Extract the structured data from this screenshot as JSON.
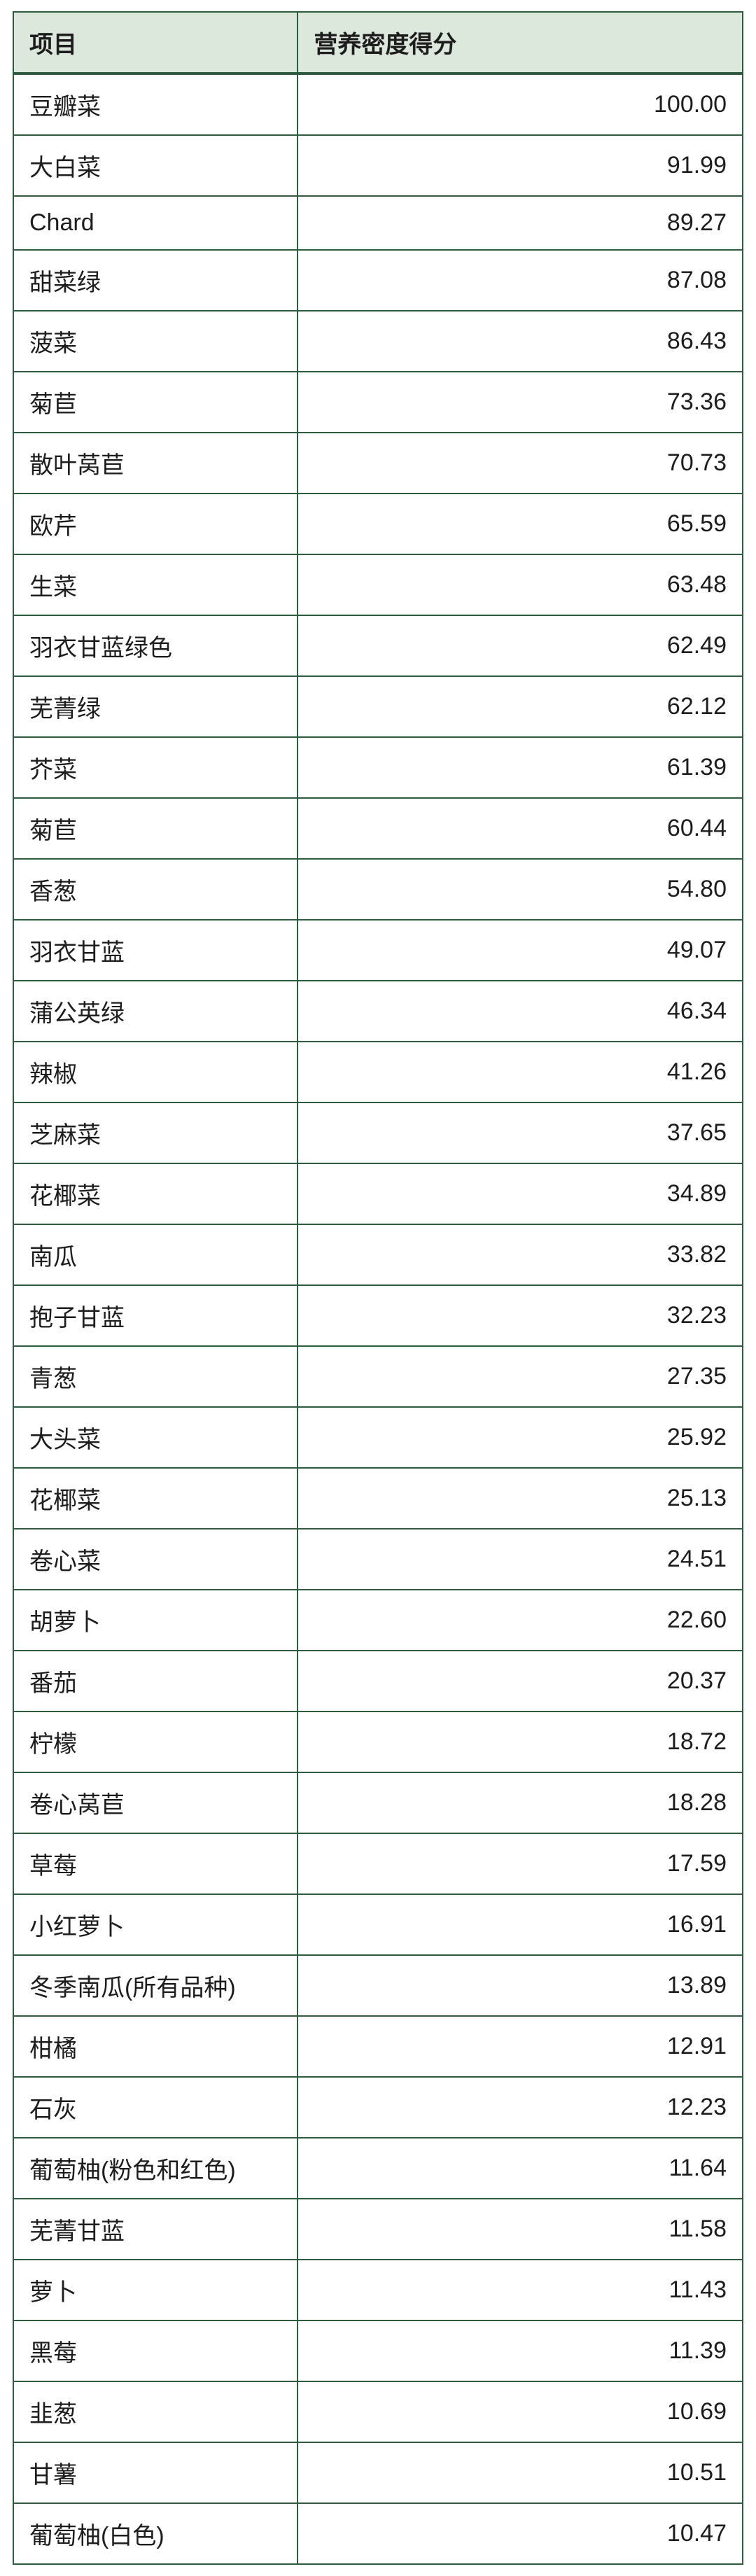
{
  "table": {
    "type": "table",
    "header_bg": "#dde8dd",
    "border_color": "#2d5b3e",
    "columns": [
      {
        "key": "item",
        "label": "项目",
        "align": "left"
      },
      {
        "key": "score",
        "label": "营养密度得分",
        "align": "right"
      }
    ],
    "rows": [
      {
        "item": "豆瓣菜",
        "score": "100.00"
      },
      {
        "item": "大白菜",
        "score": "91.99"
      },
      {
        "item": "Chard",
        "score": "89.27"
      },
      {
        "item": "甜菜绿",
        "score": "87.08"
      },
      {
        "item": "菠菜",
        "score": "86.43"
      },
      {
        "item": "菊苣",
        "score": "73.36"
      },
      {
        "item": "散叶莴苣",
        "score": "70.73"
      },
      {
        "item": "欧芹",
        "score": "65.59"
      },
      {
        "item": "生菜",
        "score": "63.48"
      },
      {
        "item": "羽衣甘蓝绿色",
        "score": "62.49"
      },
      {
        "item": "芜菁绿",
        "score": "62.12"
      },
      {
        "item": "芥菜",
        "score": "61.39"
      },
      {
        "item": "菊苣",
        "score": "60.44"
      },
      {
        "item": "香葱",
        "score": "54.80"
      },
      {
        "item": "羽衣甘蓝",
        "score": "49.07"
      },
      {
        "item": "蒲公英绿",
        "score": "46.34"
      },
      {
        "item": "辣椒",
        "score": "41.26"
      },
      {
        "item": "芝麻菜",
        "score": "37.65"
      },
      {
        "item": "花椰菜",
        "score": "34.89"
      },
      {
        "item": "南瓜",
        "score": "33.82"
      },
      {
        "item": "抱子甘蓝",
        "score": "32.23"
      },
      {
        "item": "青葱",
        "score": "27.35"
      },
      {
        "item": "大头菜",
        "score": "25.92"
      },
      {
        "item": "花椰菜",
        "score": "25.13"
      },
      {
        "item": "卷心菜",
        "score": "24.51"
      },
      {
        "item": "胡萝卜",
        "score": "22.60"
      },
      {
        "item": "番茄",
        "score": "20.37"
      },
      {
        "item": "柠檬",
        "score": "18.72"
      },
      {
        "item": "卷心莴苣",
        "score": "18.28"
      },
      {
        "item": "草莓",
        "score": "17.59"
      },
      {
        "item": "小红萝卜",
        "score": "16.91"
      },
      {
        "item": "冬季南瓜(所有品种)",
        "score": "13.89"
      },
      {
        "item": "柑橘",
        "score": "12.91"
      },
      {
        "item": "石灰",
        "score": "12.23"
      },
      {
        "item": "葡萄柚(粉色和红色)",
        "score": "11.64"
      },
      {
        "item": "芜菁甘蓝",
        "score": "11.58"
      },
      {
        "item": "萝卜",
        "score": "11.43"
      },
      {
        "item": "黑莓",
        "score": "11.39"
      },
      {
        "item": "韭葱",
        "score": "10.69"
      },
      {
        "item": "甘薯",
        "score": "10.51"
      },
      {
        "item": "葡萄柚(白色)",
        "score": "10.47"
      }
    ]
  }
}
